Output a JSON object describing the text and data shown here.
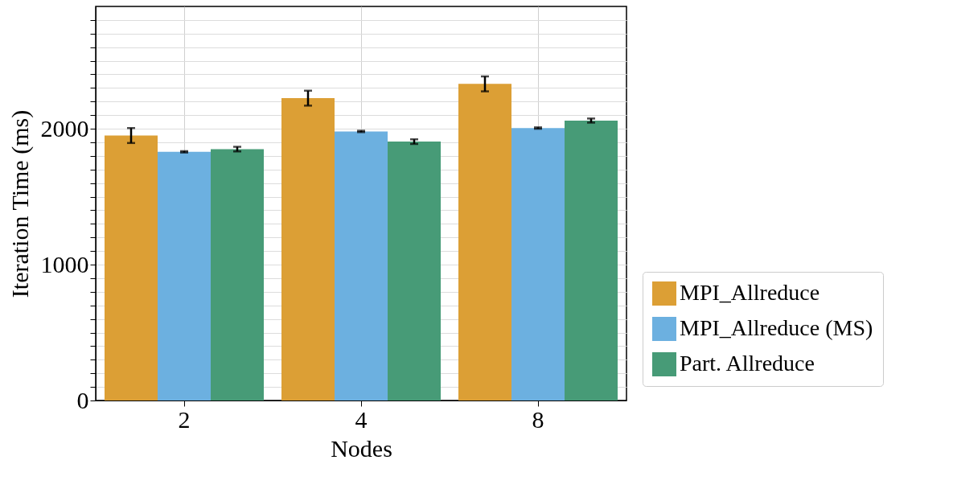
{
  "chart_data": {
    "type": "bar",
    "xlabel": "Nodes",
    "ylabel": "Iteration Time (ms)",
    "categories": [
      "2",
      "4",
      "8"
    ],
    "series": [
      {
        "name": "MPI_Allreduce",
        "color": "#dc9f35",
        "values": [
          1950,
          2225,
          2330
        ],
        "errors": [
          55,
          55,
          55
        ]
      },
      {
        "name": "MPI_Allreduce (MS)",
        "color": "#6cb0e0",
        "values": [
          1830,
          1980,
          2005
        ],
        "errors": [
          5,
          5,
          5
        ]
      },
      {
        "name": "Part. Allreduce",
        "color": "#479b77",
        "values": [
          1850,
          1905,
          2060
        ],
        "errors": [
          17,
          17,
          15
        ]
      }
    ],
    "ylim": [
      0,
      2900
    ],
    "yticks": [
      0,
      {
        "value": 100,
        "label": null
      },
      {
        "value": 200,
        "label": null
      },
      {
        "value": 300,
        "label": null
      },
      {
        "value": 400,
        "label": null
      },
      {
        "value": 500,
        "label": null
      },
      {
        "value": 600,
        "label": null
      },
      {
        "value": 700,
        "label": null
      },
      {
        "value": 800,
        "label": null
      },
      {
        "value": 900,
        "label": null
      },
      1000,
      {
        "value": 1100,
        "label": null
      },
      {
        "value": 1200,
        "label": null
      },
      {
        "value": 1300,
        "label": null
      },
      {
        "value": 1400,
        "label": null
      },
      {
        "value": 1500,
        "label": null
      },
      {
        "value": 1600,
        "label": null
      },
      {
        "value": 1700,
        "label": null
      },
      {
        "value": 1800,
        "label": null
      },
      {
        "value": 1900,
        "label": null
      },
      2000,
      {
        "value": 2100,
        "label": null
      },
      {
        "value": 2200,
        "label": null
      },
      {
        "value": 2300,
        "label": null
      },
      {
        "value": 2400,
        "label": null
      },
      {
        "value": 2500,
        "label": null
      },
      {
        "value": 2600,
        "label": null
      },
      {
        "value": 2700,
        "label": null
      },
      {
        "value": 2800,
        "label": null
      }
    ],
    "grid": true,
    "legend": "bottom right"
  }
}
